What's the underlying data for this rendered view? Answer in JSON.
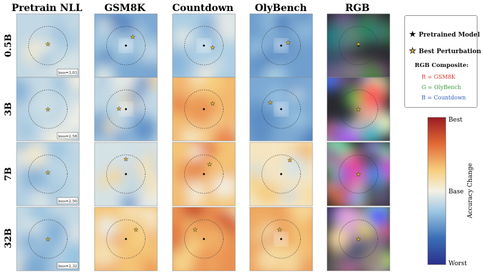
{
  "chart_data": {
    "type": "heatmap",
    "columns": [
      "Pretrain NLL",
      "GSM8K",
      "Countdown",
      "OlyBench",
      "RGB"
    ],
    "rows": [
      "0.5B",
      "3B",
      "7B",
      "32B"
    ],
    "loss_labels": [
      "loss=3.03",
      "loss=2.58",
      "loss=2.50",
      "loss=2.32"
    ],
    "cells": [
      [
        {
          "base": 0.42,
          "seed": 11,
          "var": 0.12,
          "center_white": false,
          "star": [
            0.0,
            -0.05
          ]
        },
        {
          "base": 0.3,
          "seed": 21,
          "var": 0.18,
          "center_white": true,
          "star": [
            0.22,
            -0.28
          ]
        },
        {
          "base": 0.38,
          "seed": 31,
          "var": 0.15,
          "center_white": true,
          "star": [
            0.28,
            0.05
          ]
        },
        {
          "base": 0.28,
          "seed": 41,
          "var": 0.12,
          "center_white": true,
          "star": [
            0.22,
            -0.1
          ]
        },
        {
          "base": 0.0,
          "seed": 51,
          "var": 0.5,
          "center_white": false,
          "star": [
            0.0,
            -0.05
          ]
        }
      ],
      [
        {
          "base": 0.42,
          "seed": 12,
          "var": 0.12,
          "center_white": false,
          "star": [
            0.0,
            0.0
          ]
        },
        {
          "base": 0.42,
          "seed": 22,
          "var": 0.2,
          "center_white": true,
          "star": [
            -0.22,
            -0.02
          ]
        },
        {
          "base": 0.68,
          "seed": 32,
          "var": 0.18,
          "center_white": false,
          "star": [
            0.28,
            -0.18
          ]
        },
        {
          "base": 0.3,
          "seed": 42,
          "var": 0.15,
          "center_white": true,
          "star": [
            -0.35,
            -0.22
          ]
        },
        {
          "base": 0.0,
          "seed": 52,
          "var": 0.5,
          "center_white": false,
          "star": [
            0.0,
            0.0
          ]
        }
      ],
      [
        {
          "base": 0.42,
          "seed": 13,
          "var": 0.12,
          "center_white": false,
          "star": [
            0.0,
            -0.05
          ]
        },
        {
          "base": 0.45,
          "seed": 23,
          "var": 0.22,
          "center_white": false,
          "star": [
            0.0,
            -0.48
          ]
        },
        {
          "base": 0.66,
          "seed": 33,
          "var": 0.18,
          "center_white": false,
          "star": [
            0.18,
            -0.32
          ]
        },
        {
          "base": 0.55,
          "seed": 43,
          "var": 0.15,
          "center_white": false,
          "star": [
            0.28,
            -0.45
          ]
        },
        {
          "base": 0.0,
          "seed": 53,
          "var": 0.5,
          "center_white": false,
          "star": [
            0.0,
            0.0
          ]
        }
      ],
      [
        {
          "base": 0.42,
          "seed": 14,
          "var": 0.12,
          "center_white": false,
          "star": [
            0.0,
            0.0
          ]
        },
        {
          "base": 0.66,
          "seed": 24,
          "var": 0.18,
          "center_white": false,
          "star": [
            0.32,
            -0.3
          ]
        },
        {
          "base": 0.75,
          "seed": 34,
          "var": 0.18,
          "center_white": false,
          "star": [
            -0.28,
            -0.3
          ]
        },
        {
          "base": 0.72,
          "seed": 44,
          "var": 0.15,
          "center_white": true,
          "star": [
            -0.05,
            -0.3
          ]
        },
        {
          "base": 0.0,
          "seed": 54,
          "var": 0.5,
          "center_white": false,
          "star": [
            0.0,
            0.0
          ]
        }
      ]
    ],
    "colorbar": {
      "top": "Best",
      "middle": "Base",
      "bottom": "Worst",
      "label": "Accuracy Change"
    }
  },
  "legend": {
    "pretrained_label": "Pretrained Model",
    "best_label": "Best Perturbation",
    "rgb_title": "RGB Composite:",
    "r_line": "R = GSM8K",
    "g_line": "G = OlyBench",
    "b_line": "B = Countdown"
  },
  "colors": {
    "red": "#d23a2a",
    "green": "#3a9a3a",
    "blue": "#2e5fb8",
    "star_fill": "#f0c020"
  }
}
